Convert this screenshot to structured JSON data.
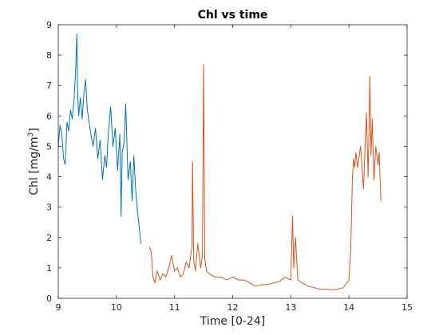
{
  "chart_data": {
    "type": "line",
    "title": "Chl vs time",
    "xlabel": "Time [0-24]",
    "ylabel_main": "Chl [mg/m",
    "ylabel_sup": "3",
    "ylabel_end": "]",
    "xlim": [
      9,
      15
    ],
    "ylim": [
      0,
      9
    ],
    "xticks": [
      9,
      10,
      11,
      12,
      13,
      14,
      15
    ],
    "yticks": [
      0,
      1,
      2,
      3,
      4,
      5,
      6,
      7,
      8,
      9
    ],
    "grid": false,
    "series": [
      {
        "color": "#0072BD",
        "x": [
          9.0,
          9.03,
          9.06,
          9.09,
          9.12,
          9.15,
          9.18,
          9.21,
          9.24,
          9.27,
          9.3,
          9.32,
          9.33,
          9.35,
          9.38,
          9.41,
          9.44,
          9.47,
          9.5,
          9.53,
          9.56,
          9.6,
          9.64,
          9.68,
          9.72,
          9.76,
          9.8,
          9.83,
          9.86,
          9.9,
          9.94,
          9.98,
          10.02,
          10.06,
          10.08,
          10.1,
          10.13,
          10.16,
          10.2,
          10.24,
          10.27,
          10.3,
          10.33,
          10.36,
          10.4,
          10.42
        ],
        "y": [
          5.0,
          5.7,
          5.4,
          4.6,
          4.4,
          5.8,
          5.5,
          6.2,
          5.9,
          6.5,
          7.6,
          8.7,
          7.0,
          6.0,
          6.6,
          5.9,
          6.7,
          7.2,
          6.2,
          5.8,
          5.4,
          5.0,
          5.6,
          4.6,
          5.2,
          3.9,
          4.7,
          4.3,
          5.4,
          6.3,
          5.0,
          5.6,
          4.2,
          5.4,
          2.7,
          4.8,
          5.1,
          6.4,
          3.9,
          4.5,
          3.2,
          4.7,
          3.6,
          2.9,
          2.2,
          1.8
        ]
      },
      {
        "color": "#D95319",
        "x": [
          10.57,
          10.6,
          10.63,
          10.66,
          10.7,
          10.75,
          10.8,
          10.85,
          10.9,
          10.95,
          11.0,
          11.05,
          11.1,
          11.15,
          11.2,
          11.25,
          11.3,
          11.31,
          11.33,
          11.36,
          11.4,
          11.45,
          11.48,
          11.5,
          11.52,
          11.55,
          11.6,
          11.7,
          11.8,
          11.9,
          12.0,
          12.1,
          12.2,
          12.3,
          12.4,
          12.5,
          12.6,
          12.7,
          12.8,
          12.9,
          13.0,
          13.03,
          13.05,
          13.08,
          13.12,
          13.2,
          13.3,
          13.4,
          13.5,
          13.6,
          13.7,
          13.8,
          13.9,
          14.0,
          14.03,
          14.06,
          14.08,
          14.1,
          14.12,
          14.15,
          14.2,
          14.25,
          14.3,
          14.33,
          14.36,
          14.38,
          14.4,
          14.43,
          14.46,
          14.5,
          14.52,
          14.55
        ],
        "y": [
          1.7,
          1.5,
          0.7,
          0.5,
          0.9,
          0.6,
          0.8,
          0.7,
          1.0,
          1.4,
          0.9,
          1.0,
          0.7,
          0.8,
          1.2,
          1.0,
          1.7,
          4.5,
          1.2,
          0.9,
          1.8,
          1.0,
          1.4,
          7.7,
          1.3,
          0.9,
          0.8,
          0.7,
          0.7,
          0.6,
          0.7,
          0.6,
          0.6,
          0.5,
          0.4,
          0.45,
          0.45,
          0.5,
          0.55,
          0.7,
          0.6,
          2.7,
          1.0,
          2.0,
          0.6,
          0.5,
          0.4,
          0.35,
          0.3,
          0.3,
          0.28,
          0.3,
          0.35,
          0.6,
          1.6,
          4.0,
          4.6,
          4.3,
          4.8,
          4.3,
          5.0,
          3.6,
          6.1,
          4.0,
          7.3,
          4.7,
          5.9,
          3.9,
          5.0,
          4.4,
          4.8,
          3.2
        ]
      }
    ]
  }
}
